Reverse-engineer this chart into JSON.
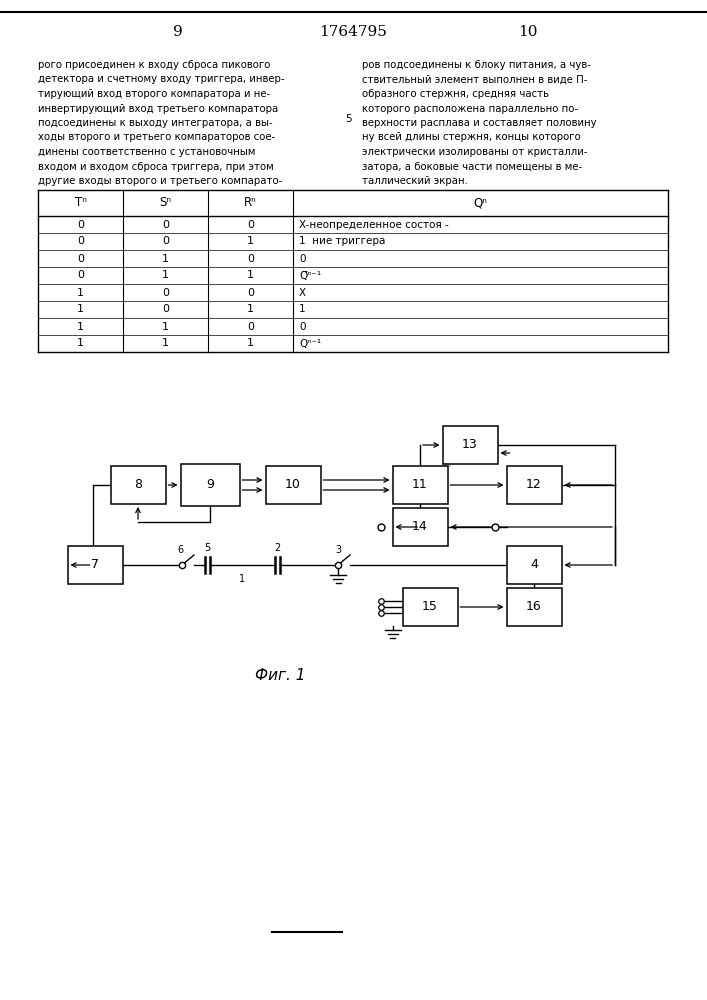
{
  "page_numbers_left": "9",
  "page_numbers_center": "1764795",
  "page_numbers_right": "10",
  "left_text_lines": [
    "рого присоединен к входу сброса пикового",
    "детектора и счетному входу триггера, инвер-",
    "тирующий вход второго компаратора и не-",
    "инвертирующий вход третьего компаратора",
    "подсоединены к выходу интегратора, а вы-",
    "ходы второго и третьего компараторов сое-",
    "динены соответственно с установочным",
    "входом и входом сброса триггера, при этом",
    "другие входы второго и третьего компарато-"
  ],
  "right_text_lines": [
    "ров подсоединены к блоку питания, а чув-",
    "ствительный элемент выполнен в виде П-",
    "образного стержня, средняя часть",
    "которого расположена параллельно по-",
    "верхности расплава и составляет половину",
    "ну всей длины стержня, концы которого",
    "электрически изолированы от кристалли-",
    "затора, а боковые части помещены в ме-",
    "таллический экран."
  ],
  "line_number_5": "5",
  "table_headers": [
    "Tⁿ",
    "Sⁿ",
    "Rⁿ",
    "Qⁿ"
  ],
  "table_rows": [
    [
      "0",
      "0",
      "0",
      "X-неопределенное состоя -"
    ],
    [
      "0",
      "0",
      "1",
      "1  ние триггера"
    ],
    [
      "0",
      "1",
      "0",
      "0"
    ],
    [
      "0",
      "1",
      "1",
      "Q̅ⁿ⁻¹"
    ],
    [
      "1",
      "0",
      "0",
      "X"
    ],
    [
      "1",
      "0",
      "1",
      "1"
    ],
    [
      "1",
      "1",
      "0",
      "0"
    ],
    [
      "1",
      "1",
      "1",
      "Qⁿ⁻¹"
    ]
  ],
  "fig_caption": "Фиг. 1",
  "block_labels": [
    "8",
    "9",
    "10",
    "11",
    "12",
    "13",
    "14",
    "7",
    "4",
    "15",
    "16"
  ]
}
